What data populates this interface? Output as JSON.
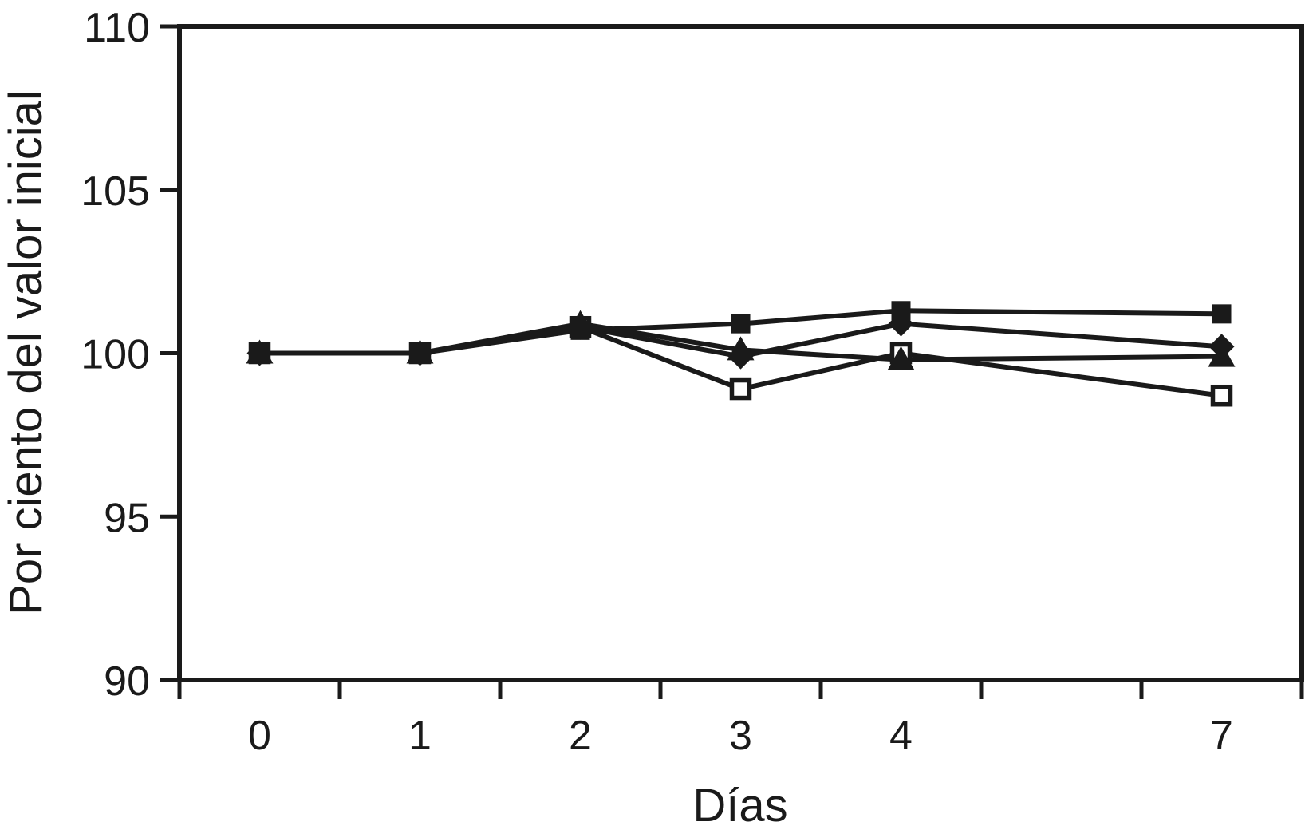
{
  "figure": {
    "background_color": "#ffffff",
    "line_color": "#1a1a1a",
    "text_color": "#1a1a1a",
    "open_marker_fill": "#ffffff"
  },
  "chart_data": {
    "type": "line",
    "title": "",
    "xlabel": "Días",
    "ylabel": "Por ciento del valor inicial",
    "x": [
      0,
      1,
      2,
      3,
      4,
      7
    ],
    "x_tick_labels": [
      "0",
      "1",
      "2",
      "3",
      "4",
      "7"
    ],
    "x_slots": [
      0,
      1,
      2,
      3,
      4,
      6
    ],
    "slot_range": [
      -0.5,
      6.5
    ],
    "x_boundary_tick_slots": [
      -0.5,
      0.5,
      1.5,
      2.5,
      3.5,
      4.5,
      5.5,
      6.5
    ],
    "ylim": [
      90,
      110
    ],
    "yticks": [
      90,
      95,
      100,
      105,
      110
    ],
    "ytick_labels": [
      "90",
      "95",
      "100",
      "105",
      "110"
    ],
    "grid": false,
    "legend": "none",
    "series": [
      {
        "name": "serie-cuadrado-relleno",
        "marker": "filled-square",
        "color": "#1a1a1a",
        "values": [
          100.0,
          100.0,
          100.7,
          100.9,
          101.3,
          101.2
        ]
      },
      {
        "name": "serie-rombo-relleno",
        "marker": "filled-diamond",
        "color": "#1a1a1a",
        "values": [
          100.0,
          100.0,
          100.8,
          99.9,
          100.9,
          100.2
        ]
      },
      {
        "name": "serie-triangulo-relleno",
        "marker": "filled-triangle",
        "color": "#1a1a1a",
        "values": [
          100.0,
          100.0,
          100.9,
          100.1,
          99.8,
          99.9
        ]
      },
      {
        "name": "serie-cuadrado-abierto",
        "marker": "open-square",
        "color": "#1a1a1a",
        "values": [
          100.0,
          100.0,
          100.8,
          98.9,
          100.0,
          98.7
        ]
      }
    ]
  }
}
